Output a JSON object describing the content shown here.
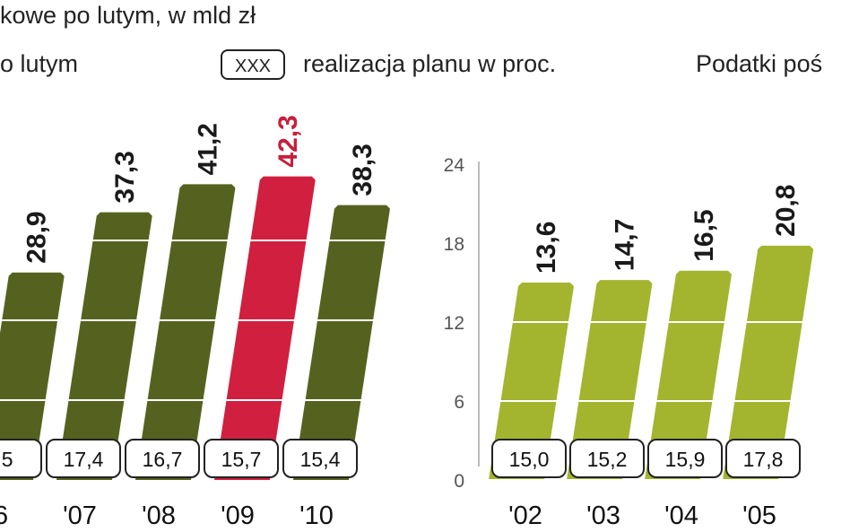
{
  "header": {
    "line1": "kowe po lutym, w mld zł",
    "line2": "o lutym",
    "legend_box": "XXX",
    "legend_text": "realizacja planu w proc.",
    "right_title": "Podatki poś"
  },
  "chart_data": [
    {
      "type": "bar",
      "categories": [
        "6",
        "'07",
        "'08",
        "'09",
        "'10"
      ],
      "values": [
        28.9,
        37.3,
        41.2,
        42.3,
        38.3
      ],
      "value_labels": [
        "28,9",
        "37,3",
        "41,2",
        "42,3",
        "38,3"
      ],
      "colors": [
        "#55621f",
        "#55621f",
        "#55621f",
        "#d11f3f",
        "#55621f"
      ],
      "label_colors": [
        "#1a1a1a",
        "#1a1a1a",
        "#1a1a1a",
        "#c81e3c",
        "#1a1a1a"
      ],
      "ylim": [
        0,
        44
      ],
      "plan_labels": [
        ",5",
        "17,4",
        "16,7",
        "15,7",
        "15,4"
      ]
    },
    {
      "type": "bar",
      "categories": [
        "'02",
        "'03",
        "'04",
        "'05"
      ],
      "values": [
        15.0,
        15.2,
        15.9,
        17.8
      ],
      "value_labels": [
        "15,0",
        "15,2",
        "15,9",
        "17,8"
      ],
      "top_labels": [
        "13,6",
        "14,7",
        "16,5",
        "20,8"
      ],
      "color": "#a3b52e",
      "ylim": [
        0,
        24
      ],
      "yticks": [
        0,
        6,
        12,
        18,
        24
      ]
    }
  ]
}
